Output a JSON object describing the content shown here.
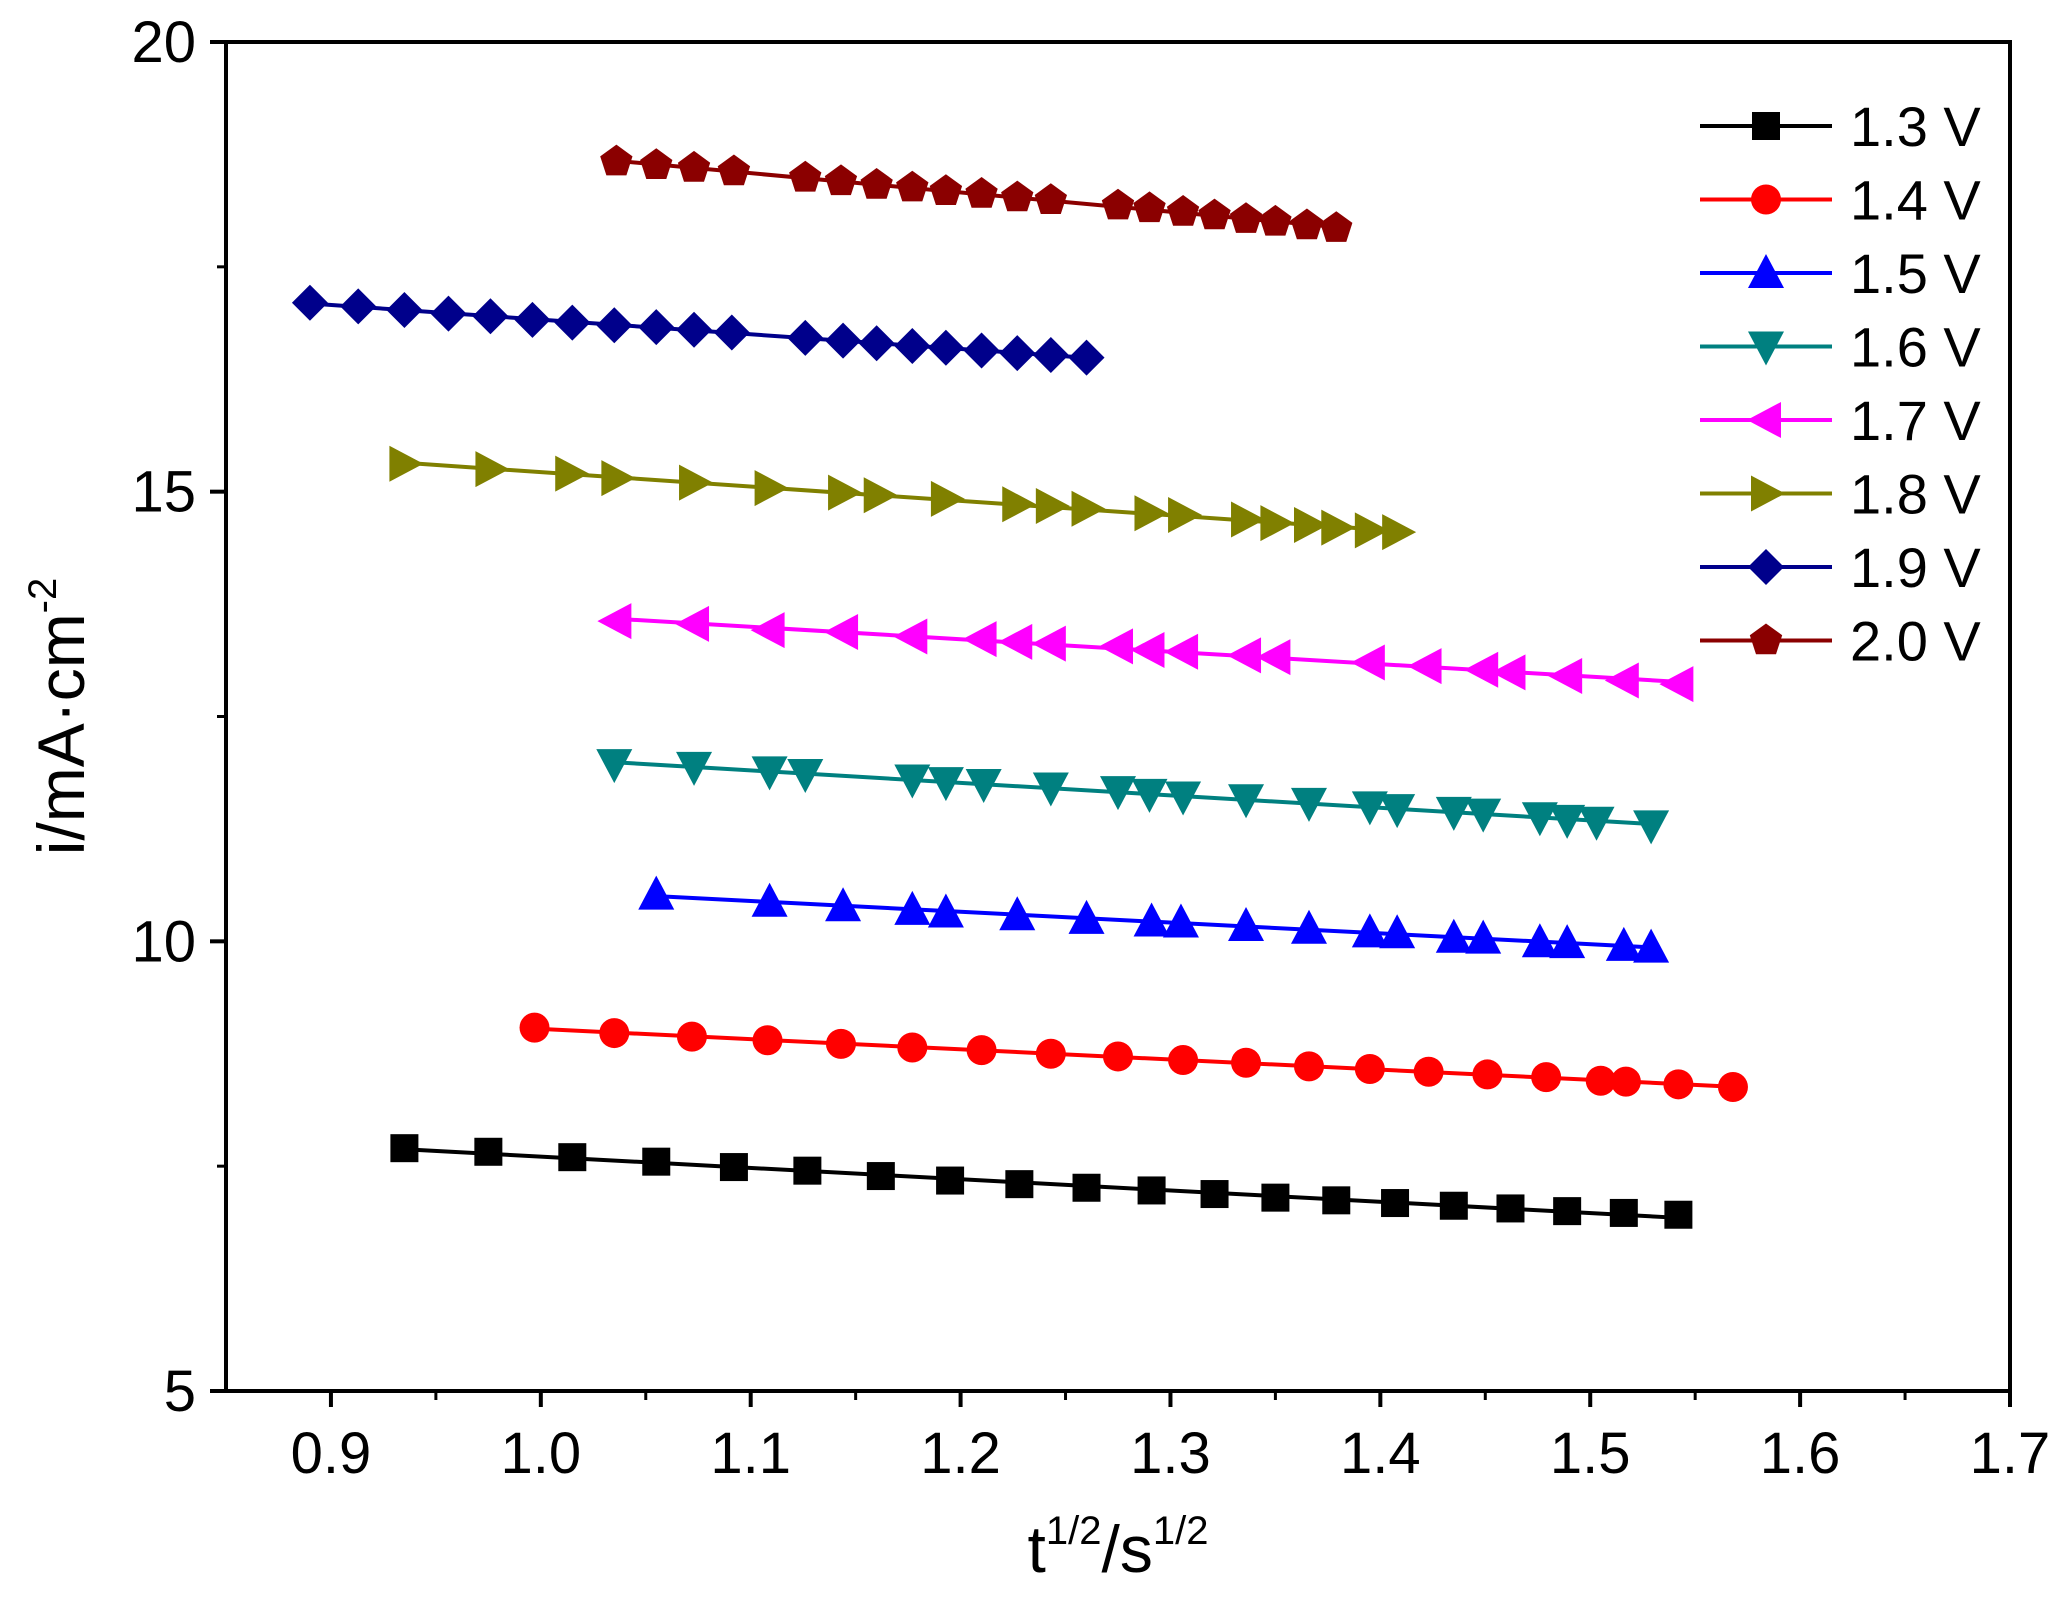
{
  "chart_data": {
    "type": "line",
    "title": "",
    "xlabel": {
      "base": "t",
      "sup": "1/2",
      "mid": "/s",
      "sup2": "1/2"
    },
    "ylabel": {
      "base": "i/mA·cm",
      "sup": "-2"
    },
    "xlim": [
      0.85,
      1.7
    ],
    "ylim": [
      5,
      20
    ],
    "xticks": [
      "0.9",
      "1.0",
      "1.1",
      "1.2",
      "1.3",
      "1.4",
      "1.5",
      "1.6",
      "1.7"
    ],
    "yticks": [
      "5",
      "10",
      "15",
      "20"
    ],
    "grid": false,
    "legend_position": "top-right",
    "series": [
      {
        "name": "1.3 V",
        "color": "#000000",
        "marker": "square",
        "x": [
          0.935,
          0.975,
          1.015,
          1.055,
          1.092,
          1.127,
          1.162,
          1.195,
          1.228,
          1.26,
          1.291,
          1.321,
          1.35,
          1.379,
          1.407,
          1.435,
          1.462,
          1.489,
          1.516,
          1.542
        ],
        "y": [
          7.7,
          7.66,
          7.6,
          7.55,
          7.49,
          7.45,
          7.39,
          7.34,
          7.3,
          7.26,
          7.23,
          7.19,
          7.15,
          7.12,
          7.09,
          7.06,
          7.03,
          7.0,
          6.98,
          6.96
        ]
      },
      {
        "name": "1.4 V",
        "color": "#ff0000",
        "marker": "circle",
        "x": [
          0.997,
          1.035,
          1.072,
          1.108,
          1.143,
          1.177,
          1.21,
          1.243,
          1.275,
          1.306,
          1.336,
          1.366,
          1.395,
          1.423,
          1.451,
          1.479,
          1.505,
          1.517,
          1.542,
          1.568
        ],
        "y": [
          9.04,
          8.98,
          8.94,
          8.9,
          8.86,
          8.82,
          8.79,
          8.75,
          8.72,
          8.68,
          8.65,
          8.61,
          8.58,
          8.55,
          8.52,
          8.49,
          8.45,
          8.44,
          8.41,
          8.38
        ]
      },
      {
        "name": "1.5 V",
        "color": "#0000ff",
        "marker": "triangle-up",
        "x": [
          1.055,
          1.109,
          1.144,
          1.177,
          1.193,
          1.227,
          1.26,
          1.291,
          1.305,
          1.336,
          1.366,
          1.395,
          1.408,
          1.435,
          1.449,
          1.476,
          1.489,
          1.516,
          1.529
        ],
        "y": [
          10.52,
          10.44,
          10.39,
          10.35,
          10.32,
          10.29,
          10.25,
          10.22,
          10.21,
          10.17,
          10.14,
          10.1,
          10.09,
          10.04,
          10.03,
          9.99,
          9.98,
          9.95,
          9.93
        ]
      },
      {
        "name": "1.6 V",
        "color": "#008080",
        "marker": "triangle-down",
        "x": [
          1.035,
          1.073,
          1.109,
          1.126,
          1.177,
          1.193,
          1.211,
          1.243,
          1.275,
          1.29,
          1.306,
          1.336,
          1.366,
          1.395,
          1.408,
          1.435,
          1.449,
          1.476,
          1.489,
          1.503,
          1.529
        ],
        "y": [
          11.97,
          11.94,
          11.89,
          11.86,
          11.8,
          11.77,
          11.75,
          11.71,
          11.67,
          11.64,
          11.61,
          11.58,
          11.54,
          11.5,
          11.47,
          11.44,
          11.42,
          11.38,
          11.35,
          11.33,
          11.29
        ]
      },
      {
        "name": "1.7 V",
        "color": "#ff00ff",
        "marker": "triangle-left",
        "x": [
          1.036,
          1.073,
          1.109,
          1.144,
          1.177,
          1.21,
          1.227,
          1.243,
          1.275,
          1.29,
          1.306,
          1.336,
          1.35,
          1.395,
          1.422,
          1.449,
          1.462,
          1.489,
          1.516,
          1.542
        ],
        "y": [
          13.56,
          13.53,
          13.46,
          13.44,
          13.39,
          13.36,
          13.33,
          13.31,
          13.28,
          13.24,
          13.22,
          13.18,
          13.16,
          13.1,
          13.06,
          13.02,
          12.99,
          12.95,
          12.9,
          12.86
        ]
      },
      {
        "name": "1.8 V",
        "color": "#808000",
        "marker": "triangle-right",
        "x": [
          0.935,
          0.976,
          1.014,
          1.036,
          1.073,
          1.109,
          1.144,
          1.161,
          1.193,
          1.227,
          1.243,
          1.26,
          1.29,
          1.306,
          1.336,
          1.35,
          1.366,
          1.379,
          1.395,
          1.408
        ],
        "y": [
          15.31,
          15.25,
          15.2,
          15.15,
          15.1,
          15.04,
          14.99,
          14.96,
          14.92,
          14.86,
          14.84,
          14.81,
          14.76,
          14.74,
          14.69,
          14.65,
          14.63,
          14.6,
          14.57,
          14.55
        ]
      },
      {
        "name": "1.9 V",
        "color": "#00008b",
        "marker": "diamond",
        "x": [
          0.89,
          0.913,
          0.935,
          0.956,
          0.976,
          0.996,
          1.015,
          1.035,
          1.055,
          1.073,
          1.091,
          1.126,
          1.144,
          1.16,
          1.177,
          1.193,
          1.21,
          1.227,
          1.243,
          1.26
        ],
        "y": [
          17.1,
          17.06,
          17.02,
          16.98,
          16.95,
          16.91,
          16.88,
          16.85,
          16.83,
          16.8,
          16.77,
          16.71,
          16.68,
          16.65,
          16.62,
          16.6,
          16.57,
          16.54,
          16.52,
          16.49
        ]
      },
      {
        "name": "2.0 V",
        "color": "#8b0000",
        "marker": "pentagon",
        "x": [
          1.036,
          1.055,
          1.073,
          1.092,
          1.126,
          1.143,
          1.16,
          1.177,
          1.193,
          1.21,
          1.227,
          1.243,
          1.275,
          1.29,
          1.306,
          1.321,
          1.336,
          1.35,
          1.365,
          1.379
        ],
        "y": [
          18.67,
          18.63,
          18.6,
          18.56,
          18.49,
          18.45,
          18.41,
          18.38,
          18.34,
          18.31,
          18.27,
          18.24,
          18.18,
          18.15,
          18.11,
          18.07,
          18.03,
          18.0,
          17.96,
          17.93
        ]
      }
    ]
  }
}
